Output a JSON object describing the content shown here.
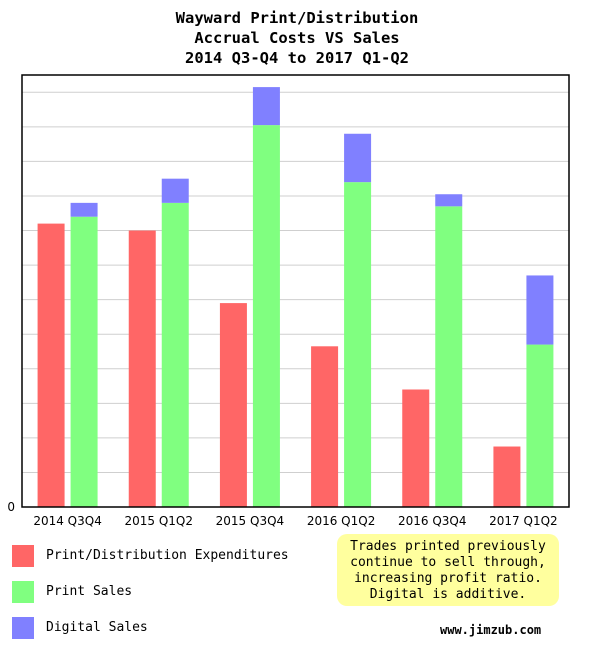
{
  "title_lines": [
    "Wayward Print/Distribution",
    "Accrual Costs VS Sales",
    "2014 Q3-Q4 to 2017 Q1-Q2"
  ],
  "colors": {
    "costs": "#ff6666",
    "print": "#80ff80",
    "digital": "#8080ff",
    "grid": "#cfcfcf",
    "note_bg": "#ffff9e"
  },
  "chart_data": {
    "type": "bar",
    "title": "Wayward Print/Distribution Accrual Costs VS Sales 2014 Q3-Q4 to 2017 Q1-Q2",
    "categories": [
      "2014 Q3Q4",
      "2015 Q1Q2",
      "2015 Q3Q4",
      "2016 Q1Q2",
      "2016 Q3Q4",
      "2017 Q1Q2"
    ],
    "series": [
      {
        "name": "Print/Distribution Expenditures",
        "stack": "costs",
        "values": [
          8.2,
          8.0,
          5.9,
          4.65,
          3.4,
          1.75
        ]
      },
      {
        "name": "Print Sales",
        "stack": "sales",
        "values": [
          8.4,
          8.8,
          11.05,
          9.4,
          8.7,
          4.7
        ]
      },
      {
        "name": "Digital Sales",
        "stack": "sales",
        "values": [
          0.4,
          0.7,
          1.1,
          1.4,
          0.35,
          2.0
        ]
      }
    ],
    "y_tick_labels": [
      "0"
    ],
    "ylim": [
      0,
      12.5
    ],
    "grid": true,
    "legend_position": "bottom-left"
  },
  "legend": [
    {
      "label": "Print/Distribution Expenditures",
      "color": "#ff6666"
    },
    {
      "label": "Print Sales",
      "color": "#80ff80"
    },
    {
      "label": "Digital Sales",
      "color": "#8080ff"
    }
  ],
  "note_lines": [
    "Trades printed previously",
    "continue to sell through,",
    "increasing profit ratio.",
    "Digital is additive."
  ],
  "website": "www.jimzub.com"
}
